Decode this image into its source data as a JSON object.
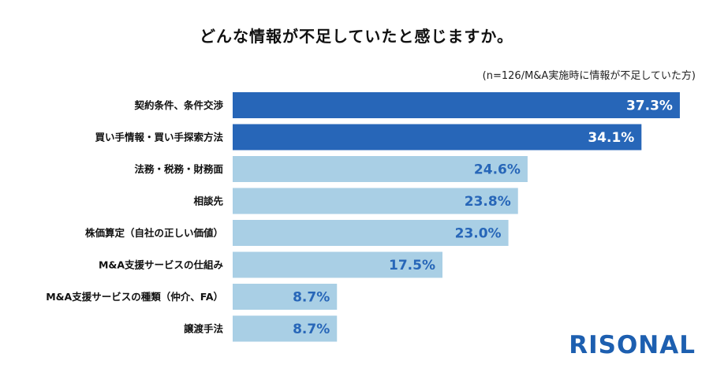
{
  "chart_data": {
    "type": "bar",
    "orientation": "horizontal",
    "title": "どんな情報が不足していたと感じますか。",
    "subtitle": "(n=126/M&A実施時に情報が不足していた方)",
    "categories": [
      "契約条件、条件交渉",
      "買い手情報・買い手探索方法",
      "法務・税務・財務面",
      "相談先",
      "株価算定（自社の正しい価値）",
      "M&A支援サービスの仕組み",
      "M&A支援サービスの種類（仲介、FA）",
      "譲渡手法"
    ],
    "values": [
      37.3,
      34.1,
      24.6,
      23.8,
      23.0,
      17.5,
      8.7,
      8.7
    ],
    "value_labels": [
      "37.3%",
      "34.1%",
      "24.6%",
      "23.8%",
      "23.0%",
      "17.5%",
      "8.7%",
      "8.7%"
    ],
    "value_unit": "%",
    "highlight_count": 2,
    "colors": {
      "highlight": "#2766b8",
      "normal": "#a9cfe5",
      "label_on_highlight": "#ffffff",
      "label_on_normal": "#2766b8"
    },
    "grid": false,
    "legend": "none"
  },
  "brand": {
    "name": "RISONAL",
    "color": "#1d5fb0"
  }
}
